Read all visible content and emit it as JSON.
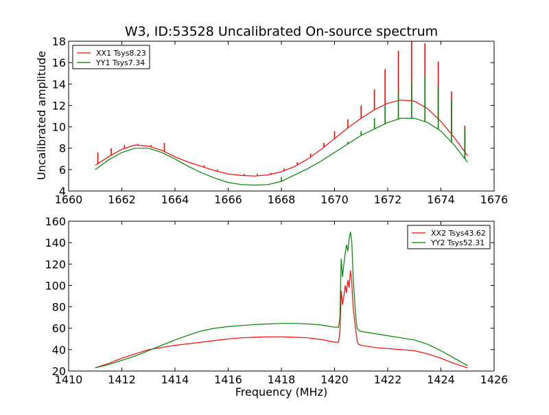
{
  "chart_data": [
    {
      "type": "line",
      "title": "W3, ID:53528 Uncalibrated On-source spectrum",
      "xlabel": "",
      "ylabel": "Uncalibrated amplitude",
      "xlim": [
        1660,
        1676
      ],
      "ylim": [
        4,
        18
      ],
      "xticks": [
        1660,
        1662,
        1664,
        1666,
        1668,
        1670,
        1672,
        1674,
        1676
      ],
      "yticks": [
        4,
        6,
        8,
        10,
        12,
        14,
        16,
        18
      ],
      "legend_placement": "top-left",
      "series": [
        {
          "name": "XX1 Tsys8.23",
          "color": "#ff0000",
          "x": [
            1661.0,
            1661.5,
            1662.0,
            1662.5,
            1663.0,
            1663.5,
            1664.0,
            1664.5,
            1665.0,
            1665.5,
            1666.0,
            1666.5,
            1667.0,
            1667.5,
            1668.0,
            1668.5,
            1669.0,
            1669.5,
            1670.0,
            1670.5,
            1671.0,
            1671.5,
            1672.0,
            1672.5,
            1673.0,
            1673.5,
            1674.0,
            1674.5,
            1675.0
          ],
          "values": [
            6.4,
            7.2,
            7.9,
            8.3,
            8.2,
            7.8,
            7.2,
            6.7,
            6.3,
            5.9,
            5.6,
            5.45,
            5.4,
            5.5,
            5.8,
            6.3,
            7.0,
            7.9,
            8.9,
            9.9,
            10.8,
            11.6,
            12.2,
            12.5,
            12.4,
            11.7,
            10.5,
            9.0,
            7.3
          ],
          "spikes": [
            {
              "x": 1661.1,
              "y": 7.6
            },
            {
              "x": 1661.6,
              "y": 8.0
            },
            {
              "x": 1662.1,
              "y": 8.3
            },
            {
              "x": 1662.6,
              "y": 8.4
            },
            {
              "x": 1663.1,
              "y": 8.3
            },
            {
              "x": 1663.6,
              "y": 8.5
            },
            {
              "x": 1665.1,
              "y": 6.4
            },
            {
              "x": 1665.6,
              "y": 6.0
            },
            {
              "x": 1666.6,
              "y": 5.6
            },
            {
              "x": 1667.1,
              "y": 5.6
            },
            {
              "x": 1667.6,
              "y": 5.7
            },
            {
              "x": 1668.1,
              "y": 6.1
            },
            {
              "x": 1668.6,
              "y": 6.7
            },
            {
              "x": 1669.1,
              "y": 7.5
            },
            {
              "x": 1669.6,
              "y": 8.5
            },
            {
              "x": 1670.0,
              "y": 9.6
            },
            {
              "x": 1670.5,
              "y": 10.7
            },
            {
              "x": 1671.0,
              "y": 12.0
            },
            {
              "x": 1671.5,
              "y": 13.5
            },
            {
              "x": 1671.9,
              "y": 15.4
            },
            {
              "x": 1672.4,
              "y": 17.1
            },
            {
              "x": 1672.9,
              "y": 18.0
            },
            {
              "x": 1673.4,
              "y": 17.8
            },
            {
              "x": 1673.9,
              "y": 16.1
            },
            {
              "x": 1674.4,
              "y": 13.3
            },
            {
              "x": 1674.9,
              "y": 10.1
            }
          ]
        },
        {
          "name": "YY1 Tsys7.34",
          "color": "#008000",
          "x": [
            1661.0,
            1661.5,
            1662.0,
            1662.5,
            1663.0,
            1663.5,
            1664.0,
            1664.5,
            1665.0,
            1665.5,
            1666.0,
            1666.5,
            1667.0,
            1667.5,
            1668.0,
            1668.5,
            1669.0,
            1669.5,
            1670.0,
            1670.5,
            1671.0,
            1671.5,
            1672.0,
            1672.5,
            1673.0,
            1673.5,
            1674.0,
            1674.5,
            1675.0
          ],
          "values": [
            6.0,
            6.9,
            7.6,
            8.0,
            8.0,
            7.6,
            7.0,
            6.3,
            5.7,
            5.2,
            4.8,
            4.6,
            4.55,
            4.6,
            4.9,
            5.5,
            6.1,
            6.8,
            7.6,
            8.4,
            9.2,
            9.8,
            10.4,
            10.8,
            10.8,
            10.4,
            9.6,
            8.3,
            6.7
          ],
          "spikes": [
            {
              "x": 1668.0,
              "y": 5.3
            },
            {
              "x": 1670.5,
              "y": 8.6
            },
            {
              "x": 1671.0,
              "y": 9.6
            },
            {
              "x": 1671.5,
              "y": 10.8
            },
            {
              "x": 1671.9,
              "y": 12.0
            },
            {
              "x": 1672.4,
              "y": 13.1
            },
            {
              "x": 1672.9,
              "y": 14.2
            },
            {
              "x": 1673.4,
              "y": 14.8
            },
            {
              "x": 1673.9,
              "y": 13.8
            },
            {
              "x": 1674.4,
              "y": 12.5
            },
            {
              "x": 1674.9,
              "y": 9.8
            }
          ]
        }
      ]
    },
    {
      "type": "line",
      "title": "",
      "xlabel": "Frequency (MHz)",
      "ylabel": "",
      "xlim": [
        1410,
        1426
      ],
      "ylim": [
        20,
        160
      ],
      "xticks": [
        1410,
        1412,
        1414,
        1416,
        1418,
        1420,
        1422,
        1424,
        1426
      ],
      "yticks": [
        20,
        40,
        60,
        80,
        100,
        120,
        140,
        160
      ],
      "legend_placement": "top-right",
      "series": [
        {
          "name": "XX2 Tsys43.62",
          "color": "#ff0000",
          "x": [
            1411.0,
            1411.5,
            1412.0,
            1412.5,
            1413.0,
            1413.5,
            1414.0,
            1414.5,
            1415.0,
            1415.5,
            1416.0,
            1416.5,
            1417.0,
            1417.5,
            1418.0,
            1418.5,
            1419.0,
            1419.5,
            1420.0,
            1420.15,
            1420.2,
            1420.25,
            1420.3,
            1420.35,
            1420.4,
            1420.45,
            1420.5,
            1420.55,
            1420.6,
            1420.65,
            1420.7,
            1420.75,
            1420.8,
            1420.85,
            1420.9,
            1421.0,
            1421.5,
            1422.0,
            1422.5,
            1423.0,
            1423.5,
            1424.0,
            1424.5,
            1425.0
          ],
          "values": [
            23,
            27,
            32,
            36,
            40,
            42,
            44,
            45.5,
            47,
            48.5,
            50,
            51,
            51.5,
            52,
            52,
            51.5,
            51,
            49.5,
            47,
            47,
            55,
            95,
            82,
            90,
            100,
            93,
            105,
            98,
            114,
            102,
            80,
            68,
            58,
            48,
            45,
            44,
            42,
            41,
            40,
            39,
            36,
            32,
            27,
            23
          ]
        },
        {
          "name": "YY2 Tsys52.31",
          "color": "#008000",
          "x": [
            1411.0,
            1411.5,
            1412.0,
            1412.5,
            1413.0,
            1413.5,
            1414.0,
            1414.5,
            1415.0,
            1415.5,
            1416.0,
            1416.5,
            1417.0,
            1417.5,
            1418.0,
            1418.5,
            1419.0,
            1419.5,
            1420.0,
            1420.15,
            1420.2,
            1420.25,
            1420.3,
            1420.35,
            1420.4,
            1420.45,
            1420.5,
            1420.55,
            1420.6,
            1420.65,
            1420.7,
            1420.75,
            1420.8,
            1420.85,
            1420.9,
            1421.0,
            1421.5,
            1422.0,
            1422.5,
            1423.0,
            1423.5,
            1424.0,
            1424.5,
            1425.0
          ],
          "values": [
            23,
            26,
            30,
            34,
            39,
            44,
            49,
            53.5,
            57.5,
            60,
            61.5,
            62.5,
            63.5,
            64,
            64.5,
            64.5,
            64,
            63,
            61,
            61,
            70,
            125,
            108,
            120,
            130,
            138,
            132,
            144,
            150,
            140,
            108,
            88,
            70,
            60,
            58,
            57,
            55,
            53,
            51,
            49,
            45,
            39,
            32,
            25
          ]
        }
      ]
    }
  ]
}
